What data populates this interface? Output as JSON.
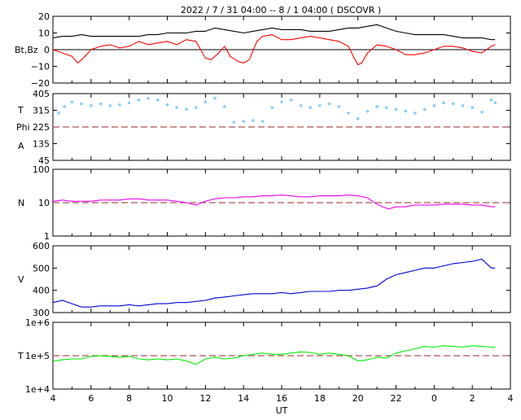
{
  "title": "2022  /  7 / 31    04:00 -- 8 /  1    04:00 ( DSCOVR )",
  "x_axis": {
    "label": "UT",
    "ticks": [
      "4",
      "6",
      "8",
      "10",
      "12",
      "14",
      "16",
      "18",
      "20",
      "22",
      "0",
      "2",
      "4"
    ]
  },
  "colors": {
    "bt": "#000000",
    "bz": "#ff0000",
    "theta": "#87cefa",
    "phi_pts": "#ff00ff",
    "phi_gray": "#a0a0a0",
    "density": "#ee00ee",
    "speed": "#0000dd",
    "temperature": "#00ee00",
    "ref_line": "#b05050"
  },
  "chart_data": [
    {
      "type": "line",
      "panel": "magnetic-field",
      "ylabel": "Bt,Bz",
      "ylim": [
        -20,
        20
      ],
      "yticks": [
        "20",
        "10",
        "0",
        "−10",
        "−20"
      ],
      "zero_line": 0,
      "series": [
        {
          "name": "Bt",
          "x": [
            4,
            4.5,
            5,
            5.5,
            6,
            6.5,
            7,
            7.5,
            8,
            8.5,
            9,
            9.5,
            10,
            10.5,
            11,
            11.5,
            12,
            12.5,
            13,
            13.5,
            14,
            14.5,
            15,
            15.5,
            16,
            16.5,
            17,
            17.5,
            18,
            18.5,
            19,
            19.5,
            20,
            20.5,
            21,
            21.5,
            22,
            22.5,
            23,
            23.5,
            24,
            24.5,
            25,
            25.5,
            26,
            26.5,
            27,
            27.2
          ],
          "values": [
            7,
            8,
            8,
            9,
            8,
            8,
            8,
            8,
            8,
            8,
            9,
            9,
            10,
            10,
            10,
            11,
            11,
            13,
            12,
            11,
            10,
            11,
            12,
            13,
            12,
            12,
            12,
            11,
            11,
            11,
            12,
            13,
            13,
            14,
            15,
            13,
            11,
            10,
            9,
            9,
            9,
            9,
            8,
            7,
            7,
            7,
            6,
            6
          ]
        },
        {
          "name": "Bz",
          "x": [
            4,
            4.5,
            5,
            5.3,
            5.6,
            6,
            6.5,
            7,
            7.5,
            8,
            8.5,
            9,
            9.5,
            10,
            10.5,
            11,
            11.5,
            11.8,
            12,
            12.3,
            12.7,
            13,
            13.3,
            13.7,
            14,
            14.3,
            14.7,
            15,
            15.5,
            16,
            16.5,
            17,
            17.5,
            18,
            18.5,
            19,
            19.5,
            19.8,
            20,
            20.2,
            20.5,
            21,
            21.5,
            22,
            22.5,
            23,
            23.5,
            24,
            24.5,
            25,
            25.5,
            26,
            26.5,
            27,
            27.2
          ],
          "values": [
            0,
            -2,
            -4,
            -8,
            -5,
            0,
            2,
            3,
            1,
            2,
            5,
            3,
            4,
            5,
            3,
            6,
            5,
            -1,
            -5,
            -6,
            -2,
            2,
            -4,
            -7,
            -8,
            -6,
            5,
            8,
            9,
            6,
            6,
            7,
            8,
            7,
            6,
            5,
            2,
            -5,
            -9,
            -8,
            -2,
            3,
            2,
            0,
            -3,
            -3,
            -2,
            0,
            2,
            2,
            1,
            -1,
            -2,
            2,
            3
          ]
        }
      ]
    },
    {
      "type": "scatter",
      "panel": "angles",
      "ylabels": [
        "T",
        "Phi",
        "A"
      ],
      "ylim": [
        45,
        405
      ],
      "yticks": [
        "405",
        "315",
        "225",
        "135",
        "45"
      ],
      "ref_line": 225,
      "series": [
        {
          "name": "T",
          "x": [
            4.3,
            4.6,
            5,
            5.5,
            6,
            6.5,
            7,
            7.5,
            8,
            8.5,
            9,
            9.5,
            10,
            10.5,
            11,
            11.5,
            12,
            12.5,
            13,
            13.5,
            14,
            14.5,
            15,
            15.5,
            16,
            16.5,
            17,
            17.5,
            18,
            18.5,
            19,
            19.5,
            20,
            20.5,
            21,
            21.5,
            22,
            22.5,
            23,
            23.5,
            24,
            24.5,
            25,
            25.5,
            26,
            26.5,
            27,
            27.2
          ],
          "values": [
            300,
            335,
            360,
            350,
            340,
            350,
            340,
            345,
            355,
            370,
            380,
            370,
            345,
            330,
            320,
            330,
            360,
            380,
            335,
            250,
            255,
            260,
            255,
            330,
            360,
            370,
            340,
            330,
            340,
            350,
            335,
            300,
            270,
            310,
            335,
            330,
            320,
            310,
            300,
            320,
            340,
            355,
            350,
            340,
            330,
            305,
            370,
            355
          ]
        }
      ]
    },
    {
      "type": "line",
      "panel": "density",
      "ylabel": "N",
      "scale": "log",
      "ylim": [
        1,
        100
      ],
      "yticks": [
        "100",
        "10",
        "1"
      ],
      "ref_line": 10,
      "series": [
        {
          "name": "N",
          "x": [
            4,
            4.5,
            5,
            5.5,
            6,
            6.5,
            7,
            7.5,
            8,
            8.5,
            9,
            9.5,
            10,
            10.5,
            11,
            11.5,
            12,
            12.5,
            13,
            13.5,
            14,
            14.5,
            15,
            15.5,
            16,
            16.5,
            17,
            17.5,
            18,
            18.5,
            19,
            19.5,
            20,
            20.5,
            21,
            21.3,
            21.6,
            22,
            22.5,
            23,
            23.5,
            24,
            24.5,
            25,
            25.5,
            26,
            26.5,
            27,
            27.2
          ],
          "values": [
            11,
            12,
            11,
            11,
            11,
            12,
            12,
            12,
            13,
            13,
            12,
            12,
            12,
            11,
            10,
            8.5,
            11,
            13,
            14,
            14,
            15,
            15,
            16,
            16,
            17,
            16,
            15,
            15,
            16,
            16,
            16,
            17,
            16,
            14,
            9,
            7.5,
            6.5,
            7.5,
            7.5,
            8.5,
            8.5,
            8.5,
            9,
            9,
            9,
            8.5,
            8.5,
            7.5,
            7.5
          ]
        }
      ]
    },
    {
      "type": "line",
      "panel": "speed",
      "ylabel": "V",
      "ylim": [
        300,
        600
      ],
      "yticks": [
        "600",
        "500",
        "400",
        "300"
      ],
      "series": [
        {
          "name": "V",
          "x": [
            4,
            4.5,
            5,
            5.5,
            6,
            6.5,
            7,
            7.5,
            8,
            8.5,
            9,
            9.5,
            10,
            10.5,
            11,
            11.5,
            12,
            12.5,
            13,
            13.5,
            14,
            14.5,
            15,
            15.5,
            16,
            16.5,
            17,
            17.5,
            18,
            18.5,
            19,
            19.5,
            20,
            20.5,
            21,
            21.5,
            22,
            22.5,
            23,
            23.5,
            24,
            24.5,
            25,
            25.5,
            26,
            26.5,
            27,
            27.2
          ],
          "values": [
            345,
            355,
            340,
            325,
            325,
            330,
            330,
            330,
            335,
            330,
            335,
            340,
            340,
            345,
            345,
            350,
            355,
            365,
            370,
            375,
            380,
            385,
            385,
            385,
            390,
            385,
            390,
            395,
            395,
            395,
            400,
            400,
            405,
            410,
            420,
            450,
            470,
            480,
            490,
            500,
            500,
            510,
            520,
            525,
            530,
            540,
            500,
            500
          ]
        }
      ]
    },
    {
      "type": "line",
      "panel": "temperature",
      "ylabel": "T",
      "scale": "log",
      "ylim": [
        10000,
        1000000
      ],
      "yticks": [
        "1e+6",
        "1e+5",
        "1e+4"
      ],
      "ref_line": 100000,
      "series": [
        {
          "name": "T",
          "x": [
            4,
            4.5,
            5,
            5.5,
            6,
            6.5,
            7,
            7.5,
            8,
            8.5,
            9,
            9.5,
            10,
            10.5,
            11,
            11.5,
            12,
            12.5,
            13,
            13.5,
            14,
            14.5,
            15,
            15.5,
            16,
            16.5,
            17,
            17.5,
            18,
            18.5,
            19,
            19.5,
            20,
            20.5,
            21,
            21.5,
            22,
            22.5,
            23,
            23.5,
            24,
            24.5,
            25,
            25.5,
            26,
            26.5,
            27,
            27.2
          ],
          "values": [
            70000,
            75000,
            80000,
            80000,
            95000,
            100000,
            95000,
            90000,
            95000,
            80000,
            75000,
            80000,
            75000,
            80000,
            70000,
            55000,
            80000,
            90000,
            80000,
            85000,
            100000,
            110000,
            120000,
            110000,
            110000,
            120000,
            130000,
            125000,
            110000,
            120000,
            110000,
            100000,
            70000,
            75000,
            90000,
            85000,
            120000,
            140000,
            160000,
            190000,
            180000,
            200000,
            190000,
            180000,
            200000,
            190000,
            180000,
            180000
          ]
        }
      ]
    }
  ]
}
